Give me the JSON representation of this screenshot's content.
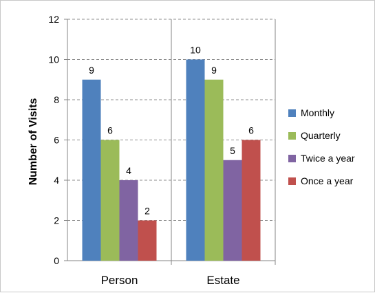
{
  "chart_data": {
    "type": "bar",
    "categories": [
      "Person",
      "Estate"
    ],
    "series": [
      {
        "name": "Monthly",
        "values": [
          9,
          10
        ],
        "color": "#4f81bd"
      },
      {
        "name": "Quarterly",
        "values": [
          6,
          9
        ],
        "color": "#9bbb59"
      },
      {
        "name": "Twice a year",
        "values": [
          4,
          5
        ],
        "color": "#8064a2"
      },
      {
        "name": "Once a year",
        "values": [
          2,
          6
        ],
        "color": "#c0504d"
      }
    ],
    "title": "",
    "xlabel": "",
    "ylabel": "Number of Visits",
    "ylim": [
      0,
      12
    ],
    "yticks": [
      0,
      2,
      4,
      6,
      8,
      10,
      12
    ],
    "grid": true,
    "legend_position": "right",
    "data_labels": true
  }
}
